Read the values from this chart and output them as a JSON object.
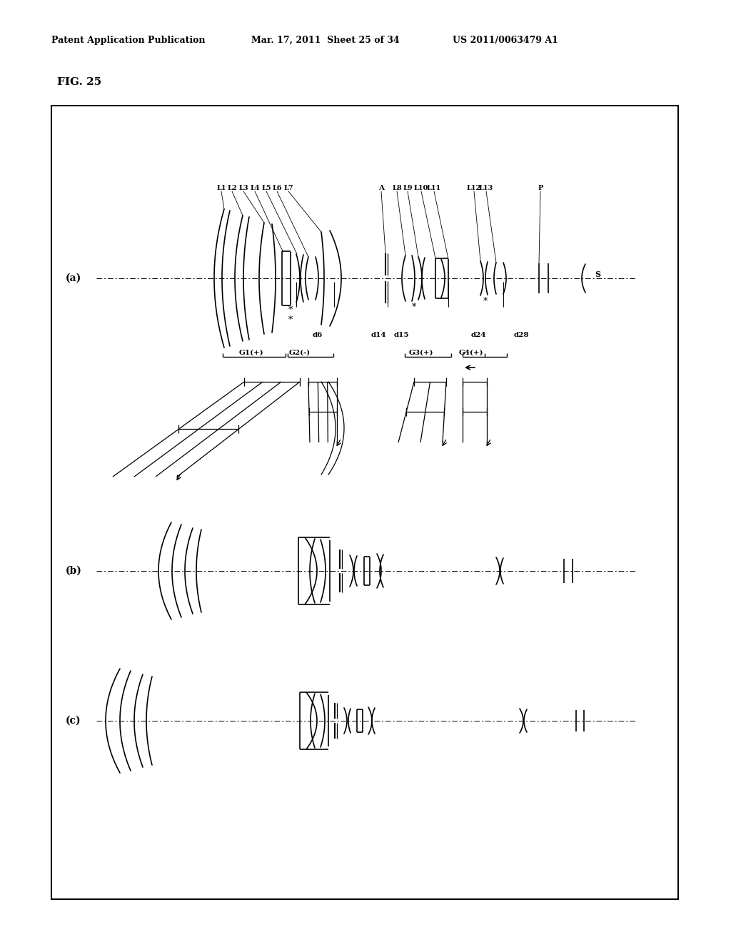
{
  "bg_color": "#ffffff",
  "header_left": "Patent Application Publication",
  "header_mid": "Mar. 17, 2011  Sheet 25 of 34",
  "header_right": "US 2011/0063479 A1",
  "fig_label": "FIG. 25",
  "label_a": "(a)",
  "label_b": "(b)",
  "label_c": "(c)"
}
